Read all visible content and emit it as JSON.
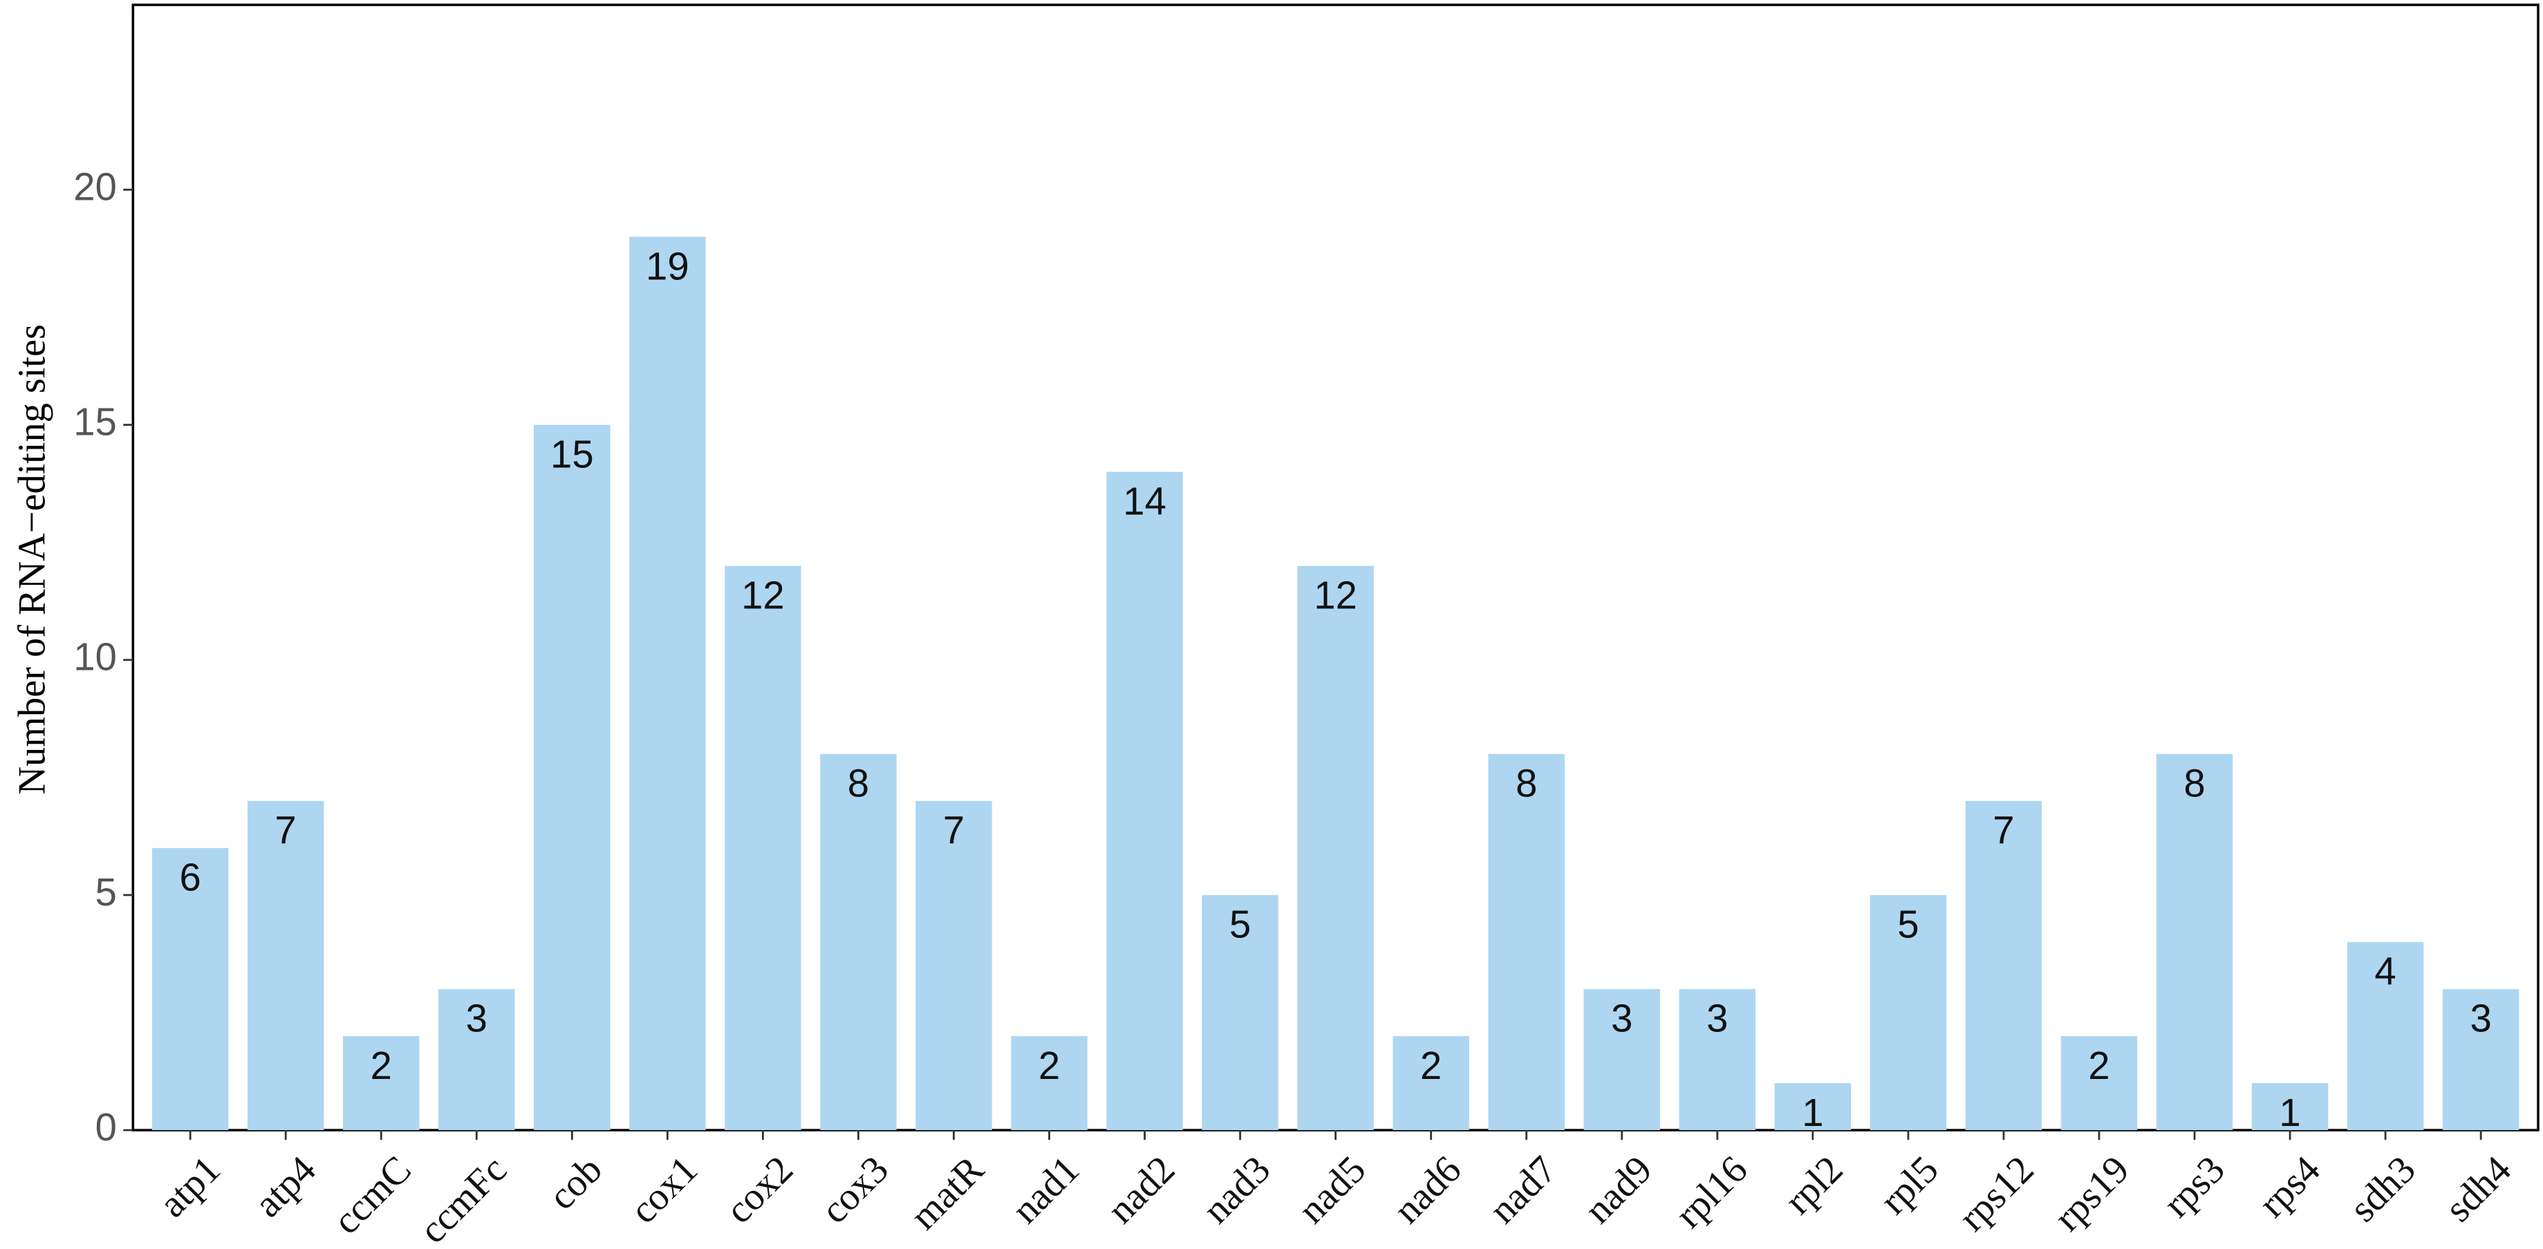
{
  "chart_data": {
    "type": "bar",
    "y_label": "Number of RNA−editing sites",
    "categories": [
      "atp1",
      "atp4",
      "ccmC",
      "ccmFc",
      "cob",
      "cox1",
      "cox2",
      "cox3",
      "matR",
      "nad1",
      "nad2",
      "nad3",
      "nad5",
      "nad6",
      "nad7",
      "nad9",
      "rpl16",
      "rpl2",
      "rpl5",
      "rps12",
      "rps19",
      "rps3",
      "rps4",
      "sdh3",
      "sdh4"
    ],
    "values": [
      6,
      7,
      2,
      3,
      15,
      19,
      12,
      8,
      7,
      2,
      14,
      5,
      12,
      2,
      8,
      3,
      3,
      1,
      5,
      7,
      2,
      8,
      1,
      4,
      3
    ],
    "color": "#aed6f1",
    "ylim": [
      0,
      24
    ],
    "yticks": [
      0,
      5,
      10,
      15,
      20
    ],
    "grid": false
  }
}
